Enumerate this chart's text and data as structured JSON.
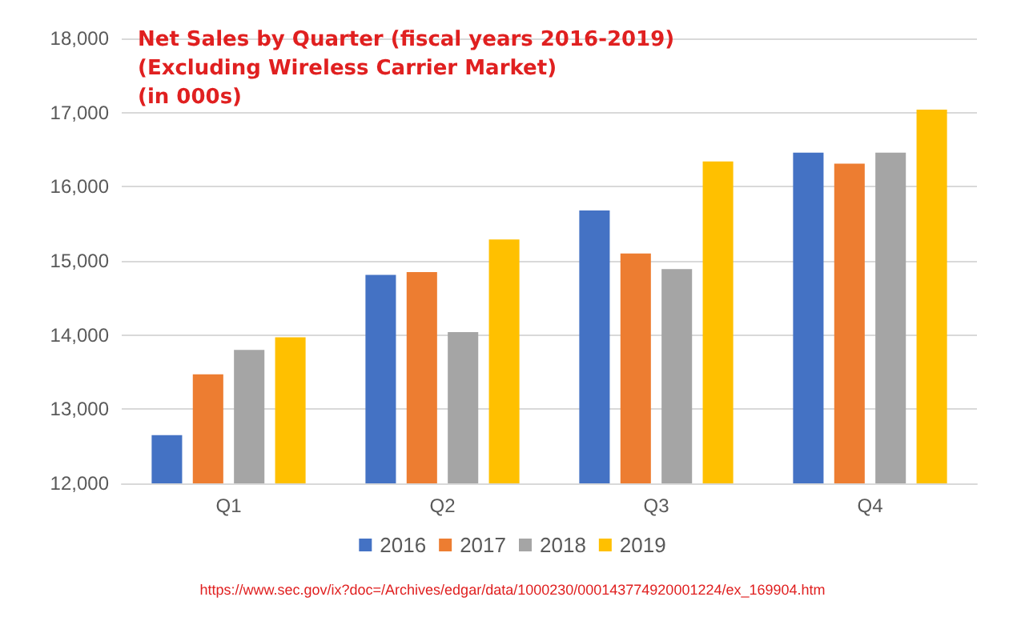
{
  "chart_data": {
    "type": "bar",
    "title": "Net Sales by Quarter (fiscal years 2016-2019)\n(Excluding Wireless Carrier Market)\n(in 000s)",
    "categories": [
      "Q1",
      "Q2",
      "Q3",
      "Q4"
    ],
    "series": [
      {
        "name": "2016",
        "color": "#4472c4",
        "values": [
          12650,
          14810,
          15680,
          16460
        ]
      },
      {
        "name": "2017",
        "color": "#ed7d31",
        "values": [
          13470,
          14850,
          15100,
          16310
        ]
      },
      {
        "name": "2018",
        "color": "#a5a5a5",
        "values": [
          13800,
          14040,
          14890,
          16460
        ]
      },
      {
        "name": "2019",
        "color": "#ffc000",
        "values": [
          13970,
          15290,
          16340,
          17040
        ]
      }
    ],
    "ylim": [
      12000,
      18000
    ],
    "yticks": [
      {
        "value": 12000,
        "label": "12,000"
      },
      {
        "value": 13000,
        "label": "13,000"
      },
      {
        "value": 14000,
        "label": "14,000"
      },
      {
        "value": 15000,
        "label": "15,000"
      },
      {
        "value": 16000,
        "label": "16,000"
      },
      {
        "value": 17000,
        "label": "17,000"
      },
      {
        "value": 18000,
        "label": "18,000"
      }
    ],
    "grid": "y",
    "legend": "bottom",
    "annotations": [
      "https://www.sec.gov/ix?doc=/Archives/edgar/data/1000230/000143774920001224/ex_169904.htm"
    ]
  }
}
